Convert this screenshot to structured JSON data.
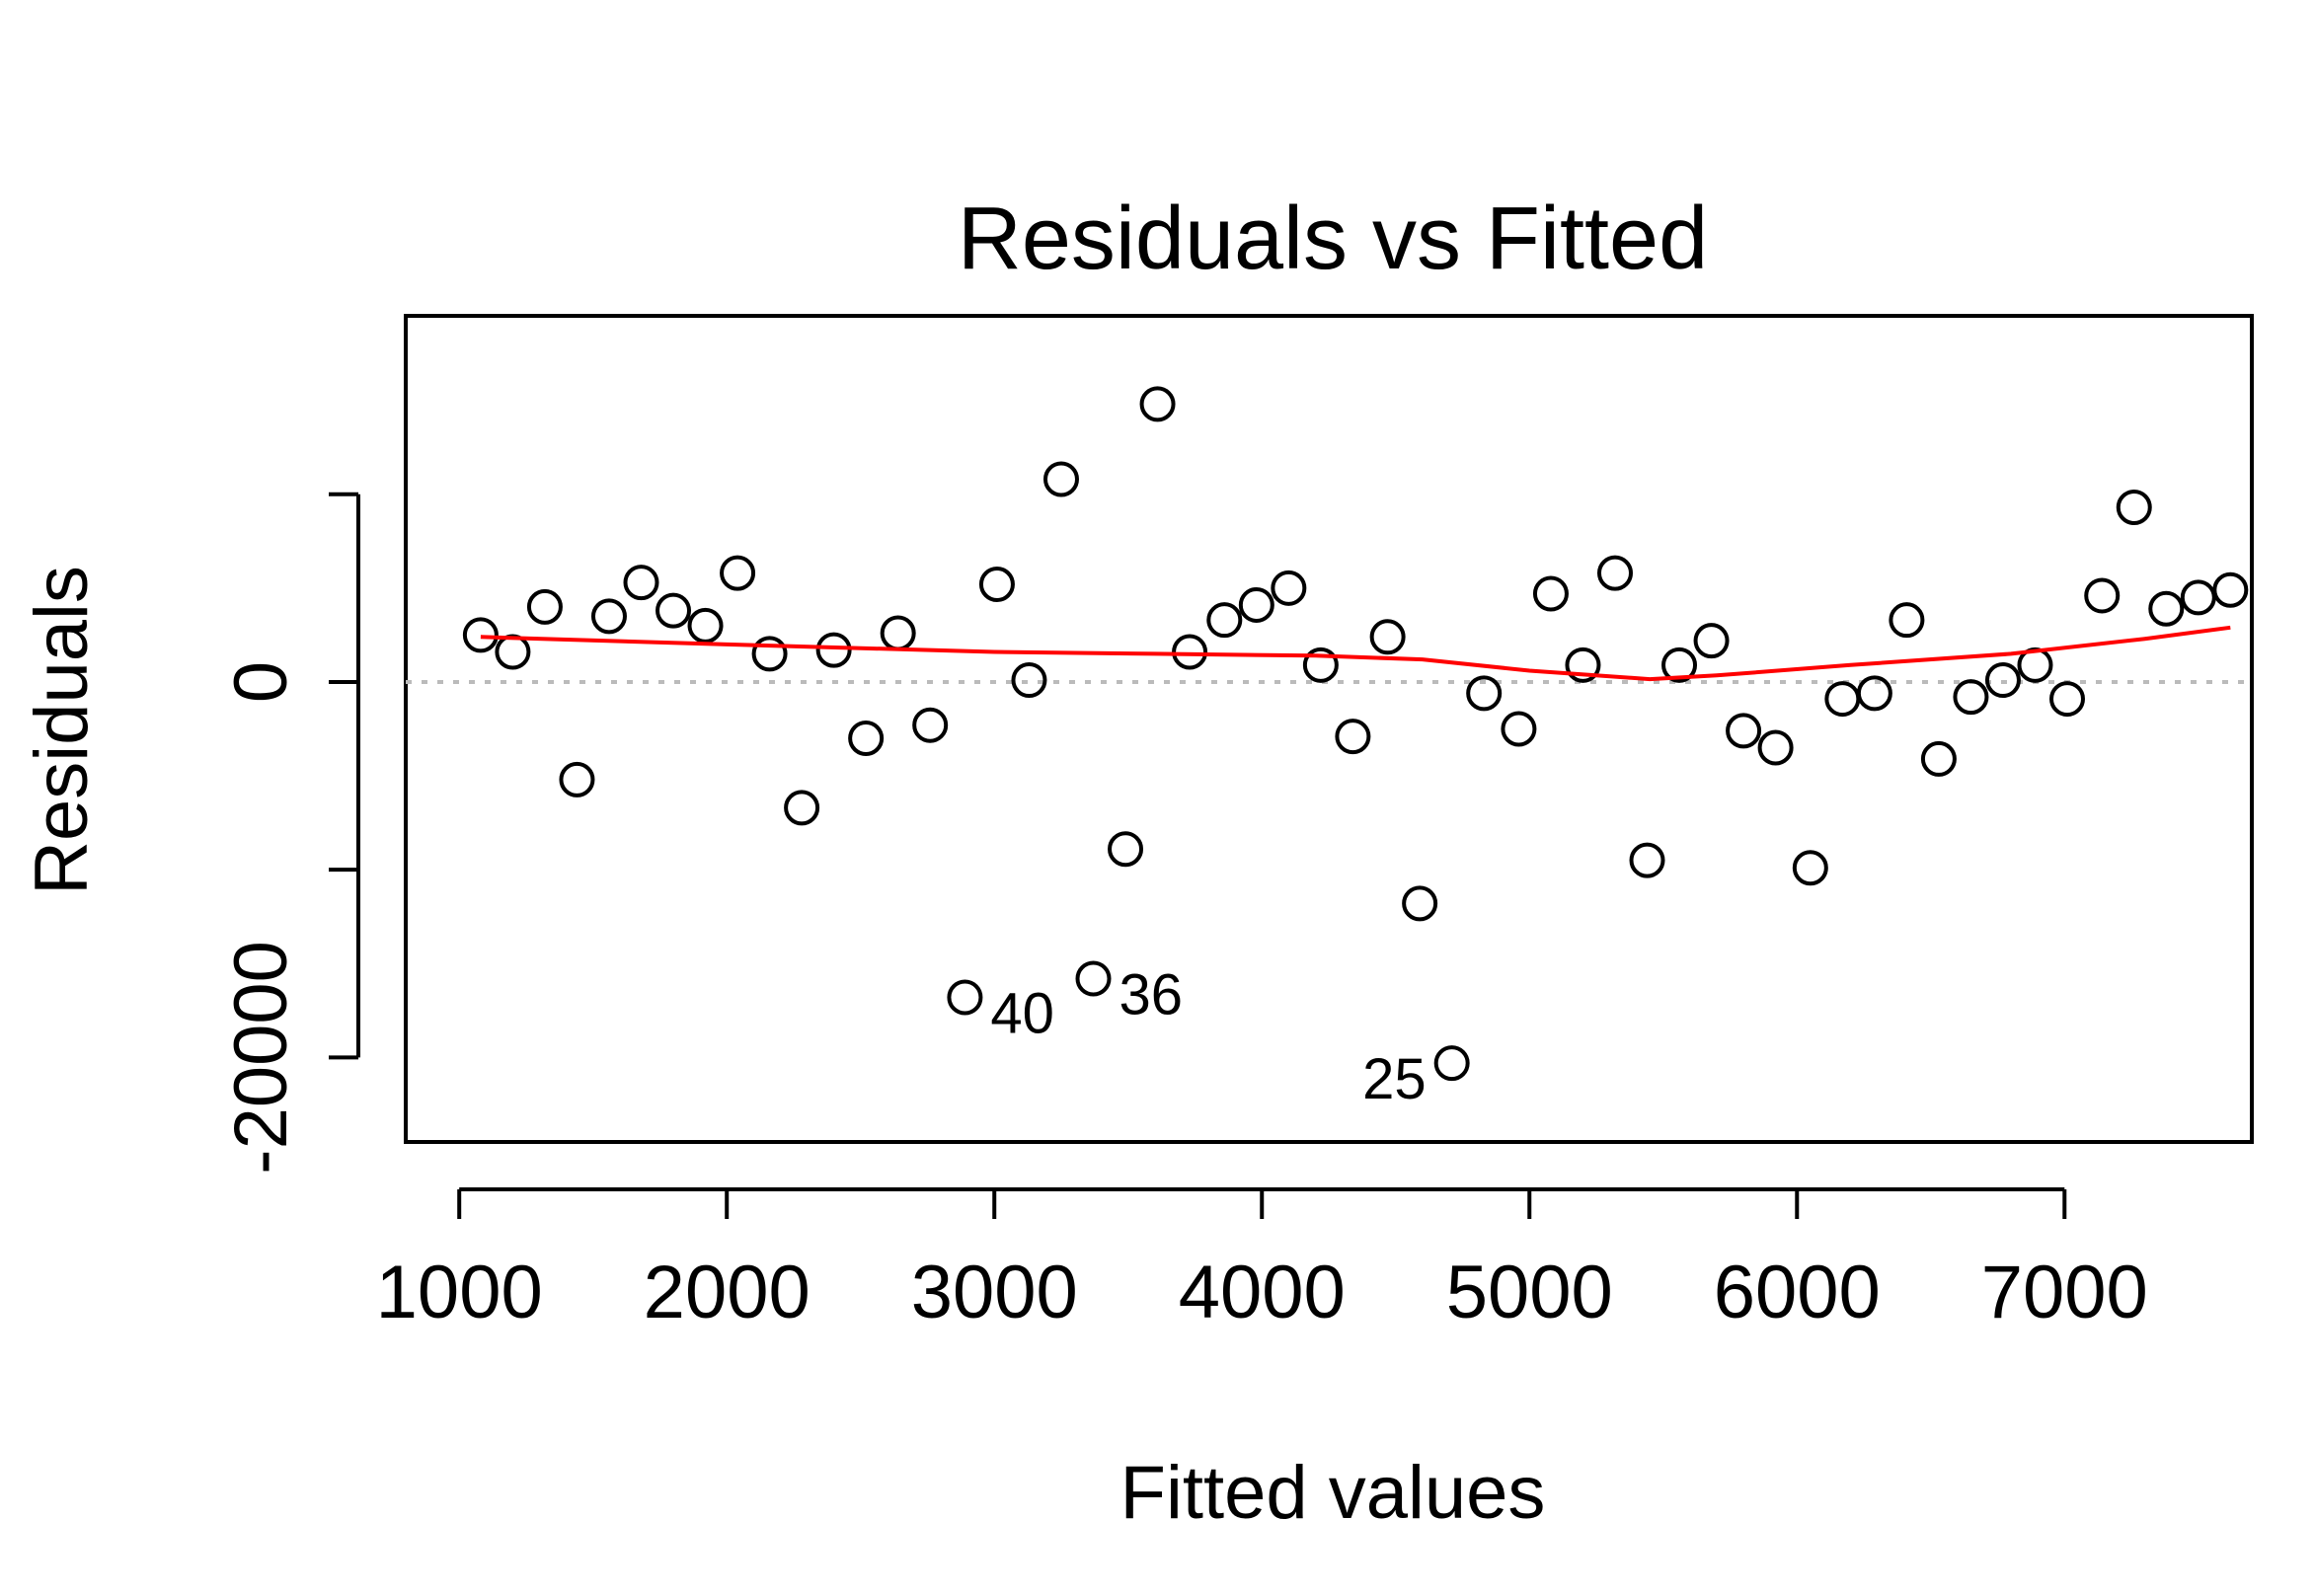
{
  "chart_data": {
    "type": "scatter",
    "title": "Residuals vs Fitted",
    "xlabel": "Fitted values",
    "ylabel": "Residuals",
    "xlim": [
      800,
      7700
    ],
    "ylim": [
      -24500,
      19500
    ],
    "x_ticks": [
      1000,
      2000,
      3000,
      4000,
      5000,
      6000,
      7000
    ],
    "x_tick_labels": [
      "1000",
      "2000",
      "3000",
      "4000",
      "5000",
      "6000",
      "7000"
    ],
    "y_ticks": [
      -20000,
      -10000,
      0,
      10000
    ],
    "y_tick_labels": [
      "-20000",
      "",
      "0",
      ""
    ],
    "reference_line": {
      "y": 0,
      "style": "dotted",
      "color": "#bbbbbb"
    },
    "points": [
      {
        "x": 1080,
        "y": 2500
      },
      {
        "x": 1200,
        "y": 1600
      },
      {
        "x": 1320,
        "y": 4000
      },
      {
        "x": 1440,
        "y": -5200
      },
      {
        "x": 1560,
        "y": 3500
      },
      {
        "x": 1680,
        "y": 5300
      },
      {
        "x": 1800,
        "y": 3800
      },
      {
        "x": 1920,
        "y": 3000
      },
      {
        "x": 2040,
        "y": 5800
      },
      {
        "x": 2160,
        "y": 1500
      },
      {
        "x": 2280,
        "y": -6700
      },
      {
        "x": 2400,
        "y": 1700
      },
      {
        "x": 2520,
        "y": -3000
      },
      {
        "x": 2640,
        "y": 2600
      },
      {
        "x": 2760,
        "y": -2300
      },
      {
        "x": 2890,
        "y": -16800,
        "label": "40"
      },
      {
        "x": 3010,
        "y": 5200
      },
      {
        "x": 3130,
        "y": 100
      },
      {
        "x": 3250,
        "y": 10800
      },
      {
        "x": 3370,
        "y": -15800,
        "label": "36"
      },
      {
        "x": 3490,
        "y": -8900
      },
      {
        "x": 3610,
        "y": 14800
      },
      {
        "x": 3730,
        "y": 1600
      },
      {
        "x": 3860,
        "y": 3300
      },
      {
        "x": 3980,
        "y": 4100
      },
      {
        "x": 4100,
        "y": 5000
      },
      {
        "x": 4220,
        "y": 900
      },
      {
        "x": 4340,
        "y": -2900
      },
      {
        "x": 4470,
        "y": 2400
      },
      {
        "x": 4590,
        "y": -11800
      },
      {
        "x": 4710,
        "y": -20300,
        "label": "25"
      },
      {
        "x": 4830,
        "y": -600
      },
      {
        "x": 4960,
        "y": -2500
      },
      {
        "x": 5080,
        "y": 4700
      },
      {
        "x": 5200,
        "y": 900
      },
      {
        "x": 5320,
        "y": 5800
      },
      {
        "x": 5440,
        "y": -9500
      },
      {
        "x": 5560,
        "y": 900
      },
      {
        "x": 5680,
        "y": 2200
      },
      {
        "x": 5800,
        "y": -2600
      },
      {
        "x": 5920,
        "y": -3500
      },
      {
        "x": 6050,
        "y": -9900
      },
      {
        "x": 6170,
        "y": -900
      },
      {
        "x": 6290,
        "y": -600
      },
      {
        "x": 6410,
        "y": 3300
      },
      {
        "x": 6530,
        "y": -4100
      },
      {
        "x": 6650,
        "y": -800
      },
      {
        "x": 6770,
        "y": 100
      },
      {
        "x": 6890,
        "y": 900
      },
      {
        "x": 7010,
        "y": -900
      },
      {
        "x": 7140,
        "y": 4600
      },
      {
        "x": 7260,
        "y": 9300
      },
      {
        "x": 7380,
        "y": 3900
      },
      {
        "x": 7500,
        "y": 4500
      },
      {
        "x": 7620,
        "y": 4900
      }
    ],
    "smoother": {
      "color": "#ff0000",
      "points": [
        {
          "x": 1080,
          "y": 2400
        },
        {
          "x": 2000,
          "y": 2000
        },
        {
          "x": 3000,
          "y": 1600
        },
        {
          "x": 3600,
          "y": 1500
        },
        {
          "x": 4200,
          "y": 1400
        },
        {
          "x": 4600,
          "y": 1200
        },
        {
          "x": 5000,
          "y": 600
        },
        {
          "x": 5450,
          "y": 150
        },
        {
          "x": 5700,
          "y": 350
        },
        {
          "x": 6200,
          "y": 900
        },
        {
          "x": 6800,
          "y": 1500
        },
        {
          "x": 7300,
          "y": 2300
        },
        {
          "x": 7620,
          "y": 2900
        }
      ]
    }
  }
}
